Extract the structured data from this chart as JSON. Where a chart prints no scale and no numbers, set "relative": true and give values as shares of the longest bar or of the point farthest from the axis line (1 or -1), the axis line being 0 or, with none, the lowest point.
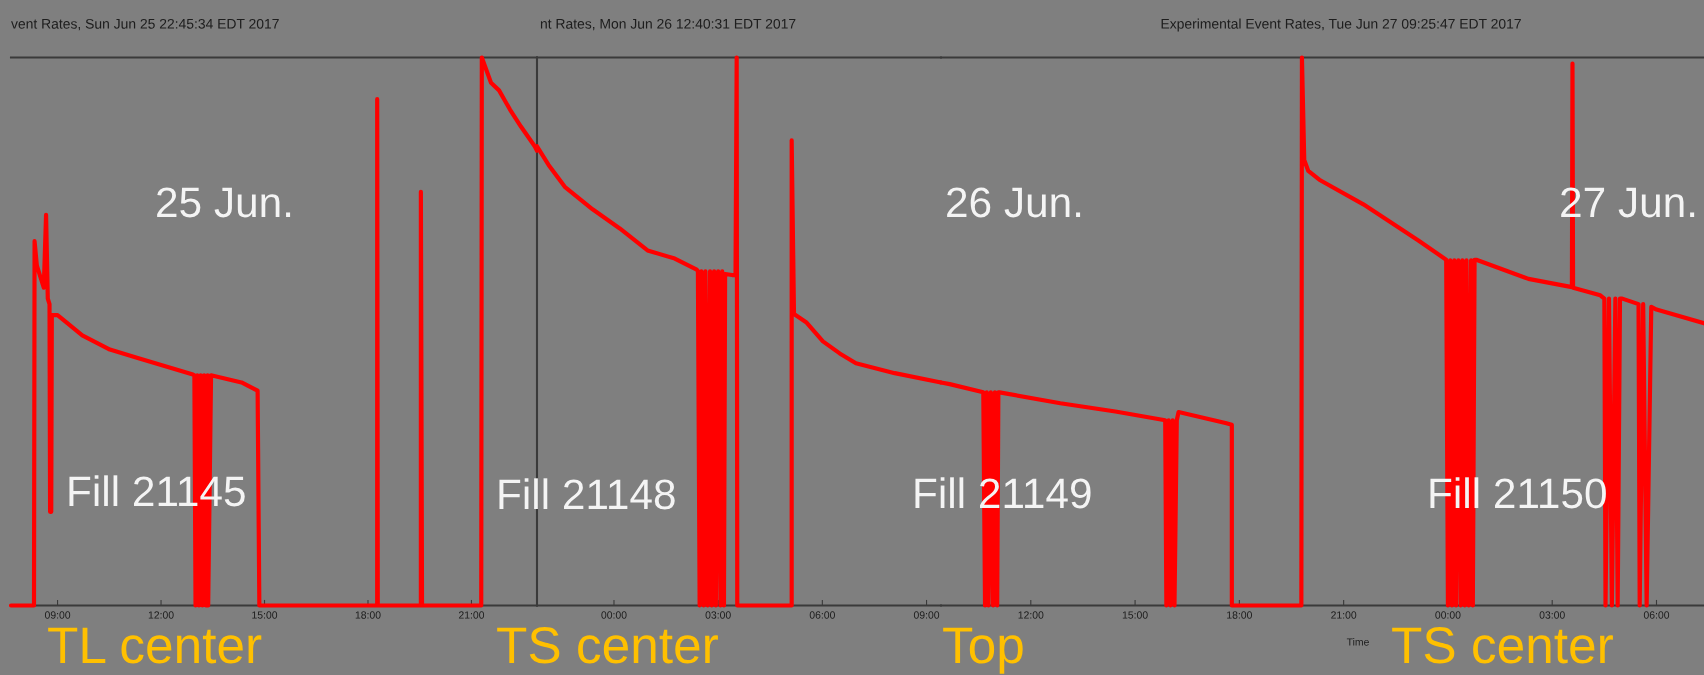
{
  "chart_data": [
    {
      "type": "line",
      "title": "vent Rates, Sun Jun 25 22:45:34 EDT 2017",
      "relative": true,
      "marker": "none",
      "line_style": "solid",
      "x": [
        "2017-06-25T07:39",
        "2017-06-25T08:19",
        "2017-06-25T08:20",
        "2017-06-25T08:24",
        "2017-06-25T08:36",
        "2017-06-25T08:40",
        "2017-06-25T08:43",
        "2017-06-25T08:46",
        "2017-06-25T08:47",
        "2017-06-25T08:49",
        "2017-06-25T08:50",
        "2017-06-25T09:00",
        "2017-06-25T09:43",
        "2017-06-25T10:31",
        "2017-06-25T11:18",
        "2017-06-25T12:06",
        "2017-06-25T12:54",
        "2017-06-25T12:58",
        "2017-06-25T13:00",
        "2017-06-25T13:03",
        "2017-06-25T13:06",
        "2017-06-25T13:09",
        "2017-06-25T13:12",
        "2017-06-25T13:15",
        "2017-06-25T13:18",
        "2017-06-25T13:21",
        "2017-06-25T13:22",
        "2017-06-25T13:27",
        "2017-06-25T14:20",
        "2017-06-25T14:48",
        "2017-06-25T14:51",
        "2017-06-25T18:16",
        "2017-06-25T18:16",
        "2017-06-25T18:17",
        "2017-06-25T19:32",
        "2017-06-25T19:32",
        "2017-06-25T19:34",
        "2017-06-25T21:17",
        "2017-06-25T21:18",
        "2017-06-25T21:34",
        "2017-06-25T21:48",
        "2017-06-25T22:07",
        "2017-06-25T22:26",
        "2017-06-25T22:50",
        "2017-06-25T22:54"
      ],
      "series": [
        {
          "color": "#ff0000",
          "values": [
            0,
            0,
            0.665,
            0.62,
            0.58,
            0.713,
            0.56,
            0.55,
            0.171,
            0.171,
            0.53,
            0.53,
            0.493,
            0.467,
            0.452,
            0.437,
            0.422,
            0.42,
            0,
            0.42,
            0,
            0.42,
            0,
            0.42,
            0,
            0.42,
            0,
            0.42,
            0.407,
            0.392,
            0,
            0,
            0.924,
            0,
            0,
            0.755,
            0,
            0,
            1.0,
            0.954,
            0.94,
            0.905,
            0.874,
            0.838,
            0.83
          ]
        }
      ],
      "xlim": [
        "2017-06-25T07:39",
        "2017-06-25T22:54"
      ],
      "xticks": [
        {
          "value": "2017-06-25T09:00",
          "label": "09:00"
        },
        {
          "value": "2017-06-25T12:00",
          "label": "12:00"
        },
        {
          "value": "2017-06-25T15:00",
          "label": "15:00"
        },
        {
          "value": "2017-06-25T18:00",
          "label": "18:00"
        },
        {
          "value": "2017-06-25T21:00",
          "label": "21:00"
        }
      ],
      "annotations": [
        "25 Jun.",
        "Fill 21145",
        "TL center"
      ]
    },
    {
      "type": "line",
      "title": "nt Rates, Mon Jun 26 12:40:31 EDT 2017",
      "relative": true,
      "marker": "none",
      "line_style": "solid",
      "x": [
        "2017-06-25T21:47",
        "2017-06-25T22:07",
        "2017-06-25T22:35",
        "2017-06-25T23:23",
        "2017-06-26T00:10",
        "2017-06-26T00:58",
        "2017-06-26T01:45",
        "2017-06-26T02:23",
        "2017-06-26T02:25",
        "2017-06-26T02:28",
        "2017-06-26T02:31",
        "2017-06-26T02:35",
        "2017-06-26T02:38",
        "2017-06-26T02:42",
        "2017-06-26T02:46",
        "2017-06-26T02:49",
        "2017-06-26T02:53",
        "2017-06-26T02:56",
        "2017-06-26T03:00",
        "2017-06-26T03:04",
        "2017-06-26T03:07",
        "2017-06-26T03:10",
        "2017-06-26T03:12",
        "2017-06-26T03:24",
        "2017-06-26T03:30",
        "2017-06-26T03:32",
        "2017-06-26T03:33",
        "2017-06-26T05:07",
        "2017-06-26T05:07",
        "2017-06-26T05:11",
        "2017-06-26T05:32",
        "2017-06-26T06:01",
        "2017-06-26T06:30",
        "2017-06-26T06:58",
        "2017-06-26T08:05",
        "2017-06-26T09:25"
      ],
      "series": [
        {
          "color": "#ff0000",
          "values": [
            0.838,
            0.804,
            0.764,
            0.723,
            0.688,
            0.648,
            0.633,
            0.613,
            0.61,
            0,
            0.61,
            0,
            0.61,
            0,
            0.61,
            0,
            0.61,
            0,
            0.61,
            0,
            0.61,
            0,
            0.605,
            0.603,
            0.603,
            1.0,
            0,
            0,
            0.849,
            0.532,
            0.517,
            0.482,
            0.46,
            0.442,
            0.424,
            0.407
          ]
        }
      ],
      "xlim": [
        "2017-06-25T21:47",
        "2017-06-26T09:25"
      ],
      "xticks": [
        {
          "value": "2017-06-26T00:00",
          "label": "00:00"
        },
        {
          "value": "2017-06-26T03:00",
          "label": "03:00"
        },
        {
          "value": "2017-06-26T06:00",
          "label": "06:00"
        },
        {
          "value": "2017-06-26T09:00",
          "label": "09:00"
        }
      ],
      "annotations": [
        "Fill 21148",
        "TS center"
      ]
    },
    {
      "type": "line",
      "title": "Experimental Event Rates, Tue Jun 27 09:25:47 EDT 2017",
      "xlabel": "Time",
      "relative": true,
      "marker": "none",
      "line_style": "solid",
      "x": [
        "2017-06-26T09:25",
        "2017-06-26T09:40",
        "2017-06-26T10:38",
        "2017-06-26T10:41",
        "2017-06-26T10:44",
        "2017-06-26T10:47",
        "2017-06-26T10:51",
        "2017-06-26T10:55",
        "2017-06-26T10:58",
        "2017-06-26T11:02",
        "2017-06-26T11:04",
        "2017-06-26T11:06",
        "2017-06-26T12:51",
        "2017-06-26T14:26",
        "2017-06-26T15:52",
        "2017-06-26T15:54",
        "2017-06-26T15:58",
        "2017-06-26T16:01",
        "2017-06-26T16:05",
        "2017-06-26T16:08",
        "2017-06-26T16:12",
        "2017-06-26T16:15",
        "2017-06-26T17:36",
        "2017-06-26T17:47",
        "2017-06-26T17:47",
        "2017-06-26T19:47",
        "2017-06-26T19:48",
        "2017-06-26T19:52",
        "2017-06-26T19:59",
        "2017-06-26T20:18",
        "2017-06-26T21:34",
        "2017-06-26T23:09",
        "2017-06-26T23:57",
        "2017-06-27T00:00",
        "2017-06-27T00:04",
        "2017-06-27T00:07",
        "2017-06-27T00:11",
        "2017-06-27T00:14",
        "2017-06-27T00:18",
        "2017-06-27T00:22",
        "2017-06-27T00:25",
        "2017-06-27T00:29",
        "2017-06-27T00:32",
        "2017-06-27T00:36",
        "2017-06-27T00:40",
        "2017-06-27T00:43",
        "2017-06-27T00:46",
        "2017-06-27T00:49",
        "2017-06-27T02:19",
        "2017-06-27T03:34",
        "2017-06-27T03:35",
        "2017-06-27T03:36",
        "2017-06-27T04:23",
        "2017-06-27T04:30",
        "2017-06-27T04:32",
        "2017-06-27T04:38",
        "2017-06-27T04:43",
        "2017-06-27T04:49",
        "2017-06-27T04:53",
        "2017-06-27T04:57",
        "2017-06-27T05:01",
        "2017-06-27T05:29",
        "2017-06-27T05:31",
        "2017-06-27T05:37",
        "2017-06-27T05:43",
        "2017-06-27T05:51",
        "2017-06-27T06:00",
        "2017-06-27T07:22"
      ],
      "series": [
        {
          "color": "#ff0000",
          "values": [
            0.407,
            0.404,
            0.389,
            0,
            0.389,
            0,
            0.389,
            0,
            0.389,
            0,
            0.389,
            0.389,
            0.369,
            0.354,
            0.338,
            0,
            0.338,
            0,
            0.338,
            0,
            0.338,
            0.353,
            0.333,
            0.33,
            0,
            0,
            1.0,
            0.813,
            0.793,
            0.777,
            0.732,
            0.666,
            0.631,
            0,
            0.63,
            0,
            0.63,
            0,
            0.63,
            0,
            0.63,
            0,
            0.63,
            0,
            0.63,
            0,
            0.631,
            0.631,
            0.596,
            0.581,
            0.989,
            0.58,
            0.566,
            0.56,
            0,
            0.56,
            0,
            0.56,
            0,
            0.56,
            0.56,
            0.55,
            0,
            0.55,
            0,
            0.545,
            0.54,
            0.515
          ]
        }
      ],
      "xlim": [
        "2017-06-26T09:25",
        "2017-06-27T07:22"
      ],
      "xticks": [
        {
          "value": "2017-06-26T12:00",
          "label": "12:00"
        },
        {
          "value": "2017-06-26T15:00",
          "label": "15:00"
        },
        {
          "value": "2017-06-26T18:00",
          "label": "18:00"
        },
        {
          "value": "2017-06-26T21:00",
          "label": "21:00"
        },
        {
          "value": "2017-06-27T00:00",
          "label": "00:00"
        },
        {
          "value": "2017-06-27T03:00",
          "label": "03:00"
        },
        {
          "value": "2017-06-27T06:00",
          "label": "06:00"
        }
      ],
      "annotations": [
        "26 Jun.",
        "Fill 21149",
        "Top",
        "27 Jun.",
        "Fill 21150",
        "TS center"
      ]
    }
  ]
}
